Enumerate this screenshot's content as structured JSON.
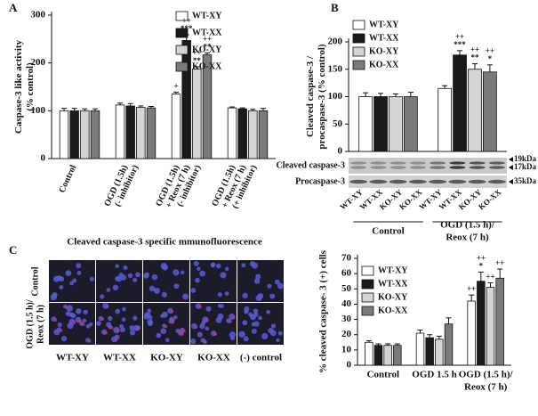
{
  "chart_data": [
    {
      "panel": "A",
      "type": "bar",
      "ylabel": [
        "Caspase-3 like activity",
        "(% control)"
      ],
      "categories": [
        [
          "Control"
        ],
        [
          "OGD (1.5h)",
          "(- inhibitor)"
        ],
        [
          "OGD (1.5h)",
          "+ Reox (7 h)",
          "(- inhibitor)"
        ],
        [
          "OGD (1.5h)",
          "+ Reox (7 h)",
          "(+ inhibitor)"
        ]
      ],
      "ylim": [
        0,
        300
      ],
      "yticks": [
        0,
        100,
        200,
        300
      ],
      "legend": "upper right",
      "series": [
        {
          "name": "WT-XY",
          "color": "#ffffff",
          "values": [
            100,
            112,
            135,
            106
          ],
          "errors": [
            5,
            4,
            4,
            2
          ],
          "markers": [
            null,
            null,
            [
              "+"
            ],
            null
          ]
        },
        {
          "name": "WT-XX",
          "color": "#1a1a1a",
          "values": [
            100,
            110,
            247,
            104
          ],
          "errors": [
            5,
            5,
            12,
            2
          ],
          "markers": [
            null,
            null,
            [
              "++",
              "***"
            ],
            null
          ]
        },
        {
          "name": "KO-XY",
          "color": "#d4d4d4",
          "values": [
            100,
            107,
            187,
            100
          ],
          "errors": [
            4,
            3,
            5,
            3
          ],
          "markers": [
            null,
            null,
            [
              "++",
              "**"
            ],
            null
          ]
        },
        {
          "name": "KO-XX",
          "color": "#7a7a7a",
          "values": [
            100,
            106,
            217,
            100
          ],
          "errors": [
            4,
            3,
            4,
            5
          ],
          "markers": [
            null,
            null,
            [
              "++",
              "**"
            ],
            null
          ]
        }
      ]
    },
    {
      "panel": "B",
      "type": "bar",
      "ylabel": [
        "Cleaved caspase-3 /",
        "procaspase-3 (% control)"
      ],
      "categories": [
        [
          "Control"
        ],
        [
          "OGD (1.5 h)/",
          "Reox (7 h)"
        ]
      ],
      "ylim": [
        0,
        200
      ],
      "yticks": [
        0,
        50,
        100,
        150,
        200
      ],
      "legend": "upper left",
      "series": [
        {
          "name": "WT-XY",
          "color": "#ffffff",
          "values": [
            100,
            115
          ],
          "errors": [
            7,
            5
          ],
          "markers": [
            null,
            null
          ]
        },
        {
          "name": "WT-XX",
          "color": "#1a1a1a",
          "values": [
            100,
            176
          ],
          "errors": [
            6,
            8
          ],
          "markers": [
            null,
            [
              "++",
              "***"
            ]
          ]
        },
        {
          "name": "KO-XY",
          "color": "#d4d4d4",
          "values": [
            100,
            150
          ],
          "errors": [
            5,
            10
          ],
          "markers": [
            null,
            [
              "++",
              "**"
            ]
          ]
        },
        {
          "name": "KO-XX",
          "color": "#7a7a7a",
          "values": [
            100,
            145
          ],
          "errors": [
            8,
            13
          ],
          "markers": [
            null,
            [
              "++",
              "*"
            ]
          ]
        }
      ],
      "blot": {
        "rows": [
          "Cleaved caspase-3",
          "Procaspase-3"
        ],
        "sizes": [
          "19kDa",
          "17kDa",
          "35kDa"
        ],
        "lanes": [
          "WT-XY",
          "WT-XX",
          "KO-XY",
          "KO-XX",
          "WT-XY",
          "WT-XX",
          "KO-XY",
          "KO-XX"
        ]
      }
    },
    {
      "panel": "C",
      "type": "bar",
      "ylabel": [
        "% cleaved caspase- 3 (+) cells"
      ],
      "categories": [
        [
          "Control"
        ],
        [
          "OGD 1.5 h"
        ],
        [
          "OGD (1.5 h)/",
          "Reox (7 h)"
        ]
      ],
      "ylim": [
        0,
        70
      ],
      "yticks": [
        0,
        10,
        20,
        30,
        40,
        50,
        60,
        70
      ],
      "legend": "upper left",
      "series": [
        {
          "name": "WT-XY",
          "color": "#ffffff",
          "values": [
            15,
            21,
            42
          ],
          "errors": [
            1,
            2,
            4
          ],
          "markers": [
            null,
            null,
            [
              "++"
            ]
          ]
        },
        {
          "name": "WT-XX",
          "color": "#1a1a1a",
          "values": [
            13,
            18,
            55
          ],
          "errors": [
            1,
            2,
            6
          ],
          "markers": [
            null,
            null,
            [
              "++",
              "*"
            ]
          ]
        },
        {
          "name": "KO-XY",
          "color": "#d4d4d4",
          "values": [
            13,
            17,
            51
          ],
          "errors": [
            1,
            2,
            3
          ],
          "markers": [
            null,
            null,
            [
              "++"
            ]
          ]
        },
        {
          "name": "KO-XX",
          "color": "#7a7a7a",
          "values": [
            13,
            27,
            57
          ],
          "errors": [
            1,
            4,
            6
          ],
          "markers": [
            null,
            null,
            [
              "++"
            ]
          ]
        }
      ],
      "images": {
        "title": "Cleaved caspase-3 specific mmunofluorescence",
        "rows": [
          [
            "Control"
          ],
          [
            "OGD (1.5 h)/",
            "Reox (7 h)"
          ]
        ],
        "columns": [
          "WT-XY",
          "WT-XX",
          "KO-XY",
          "KO-XX",
          "(-) control"
        ]
      }
    }
  ]
}
